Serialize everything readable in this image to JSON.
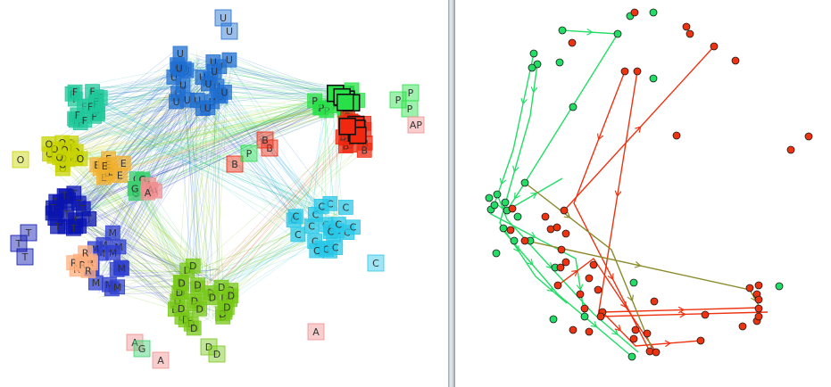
{
  "colors": {
    "U": "#1f6fd1",
    "F": "#1fc89a",
    "O": "#c8d400",
    "E": "#f0b030",
    "T": "#0a14b0",
    "M": "#2f3fd0",
    "R": "#ffb080",
    "D": "#78c818",
    "P": "#28e048",
    "B": "#f02810",
    "C": "#28c8e8",
    "A": "#f09090",
    "G": "#3cd070",
    "green_dot": "#22dd66",
    "red_dot": "#ee3311",
    "olive_line": "#8a8a2a"
  },
  "clusters": [
    {
      "letter": "U",
      "label": "U",
      "count": 26
    },
    {
      "letter": "F",
      "label": "F",
      "count": 18
    },
    {
      "letter": "O",
      "label": "O",
      "count": 18
    },
    {
      "letter": "E",
      "label": "E",
      "count": 12
    },
    {
      "letter": "T",
      "label": "T",
      "count": 20
    },
    {
      "letter": "M",
      "label": "M",
      "count": 16
    },
    {
      "letter": "R",
      "label": "R",
      "count": 8
    },
    {
      "letter": "D",
      "label": "D",
      "count": 30
    },
    {
      "letter": "P",
      "label": "P",
      "count": 12
    },
    {
      "letter": "B",
      "label": "B",
      "count": 14
    },
    {
      "letter": "C",
      "label": "C",
      "count": 22
    },
    {
      "letter": "G",
      "label": "G",
      "count": 6
    },
    {
      "letter": "A",
      "label": "A",
      "count": 4
    }
  ],
  "outliers": [
    {
      "letter": "O",
      "label": "O"
    },
    {
      "letter": "T",
      "label": "T"
    },
    {
      "letter": "T",
      "label": "T"
    },
    {
      "letter": "T",
      "label": "T"
    },
    {
      "letter": "C",
      "label": "C"
    },
    {
      "letter": "A",
      "label": "A"
    },
    {
      "letter": "A",
      "label": "A"
    },
    {
      "letter": "A",
      "label": "A"
    },
    {
      "letter": "G",
      "label": "G"
    },
    {
      "letter": "D",
      "label": "D"
    },
    {
      "letter": "D",
      "label": "D"
    },
    {
      "letter": "P",
      "label": "P"
    },
    {
      "letter": "P",
      "label": "P"
    },
    {
      "letter": "P",
      "label": "P"
    },
    {
      "letter": "A",
      "label": "AP"
    },
    {
      "letter": "B",
      "label": "B"
    },
    {
      "letter": "B",
      "label": "B"
    },
    {
      "letter": "B",
      "label": "B"
    },
    {
      "letter": "P",
      "label": "P"
    },
    {
      "letter": "U",
      "label": "U"
    },
    {
      "letter": "U",
      "label": "U"
    }
  ],
  "right_panel": {
    "green_node_count": 28,
    "red_node_count": 48
  }
}
